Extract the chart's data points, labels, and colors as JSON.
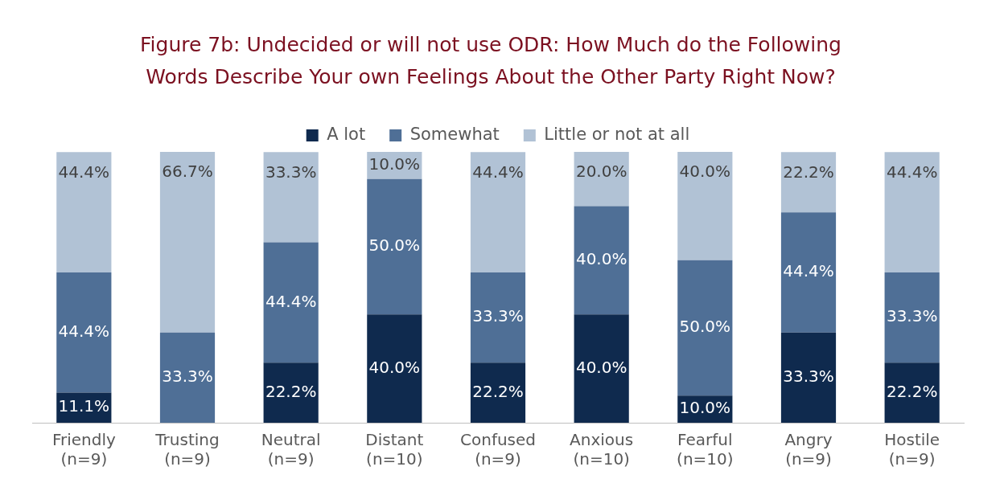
{
  "chart_data": {
    "type": "bar",
    "title": "Figure 7b: Undecided or will not use ODR: How Much do the Following Words Describe Your own Feelings About the Other Party Right Now?",
    "categories": [
      "Friendly\n(n=9)",
      "Trusting\n(n=9)",
      "Neutral\n(n=9)",
      "Distant\n(n=10)",
      "Confused\n(n=9)",
      "Anxious\n(n=10)",
      "Fearful\n(n=10)",
      "Angry\n(n=9)",
      "Hostile\n(n=9)"
    ],
    "stacked": true,
    "ylim": [
      0,
      100
    ],
    "tick_labels": "x",
    "legend": "top",
    "series": [
      {
        "name": "A lot",
        "color": "#0f2a4e",
        "values": [
          11.1,
          0,
          22.2,
          40.0,
          22.2,
          40.0,
          10.0,
          33.3,
          22.2
        ],
        "value_labels": [
          "11.1%",
          null,
          "22.2%",
          "40.0%",
          "22.2%",
          "40.0%",
          "10.0%",
          "33.3%",
          "22.2%"
        ]
      },
      {
        "name": "Somewhat",
        "color": "#4f6f96",
        "values": [
          44.4,
          33.3,
          44.4,
          50.0,
          33.3,
          40.0,
          50.0,
          44.4,
          33.3
        ],
        "value_labels": [
          "44.4%",
          "33.3%",
          "44.4%",
          "50.0%",
          "33.3%",
          "40.0%",
          "50.0%",
          "44.4%",
          "33.3%"
        ]
      },
      {
        "name": "Little or not at all",
        "color": "#b1c2d5",
        "values": [
          44.4,
          66.7,
          33.3,
          10.0,
          44.4,
          20.0,
          40.0,
          22.2,
          44.4
        ],
        "value_labels": [
          "44.4%",
          "66.7%",
          "33.3%",
          "10.0%",
          "44.4%",
          "20.0%",
          "40.0%",
          "22.2%",
          "44.4%"
        ]
      }
    ]
  }
}
